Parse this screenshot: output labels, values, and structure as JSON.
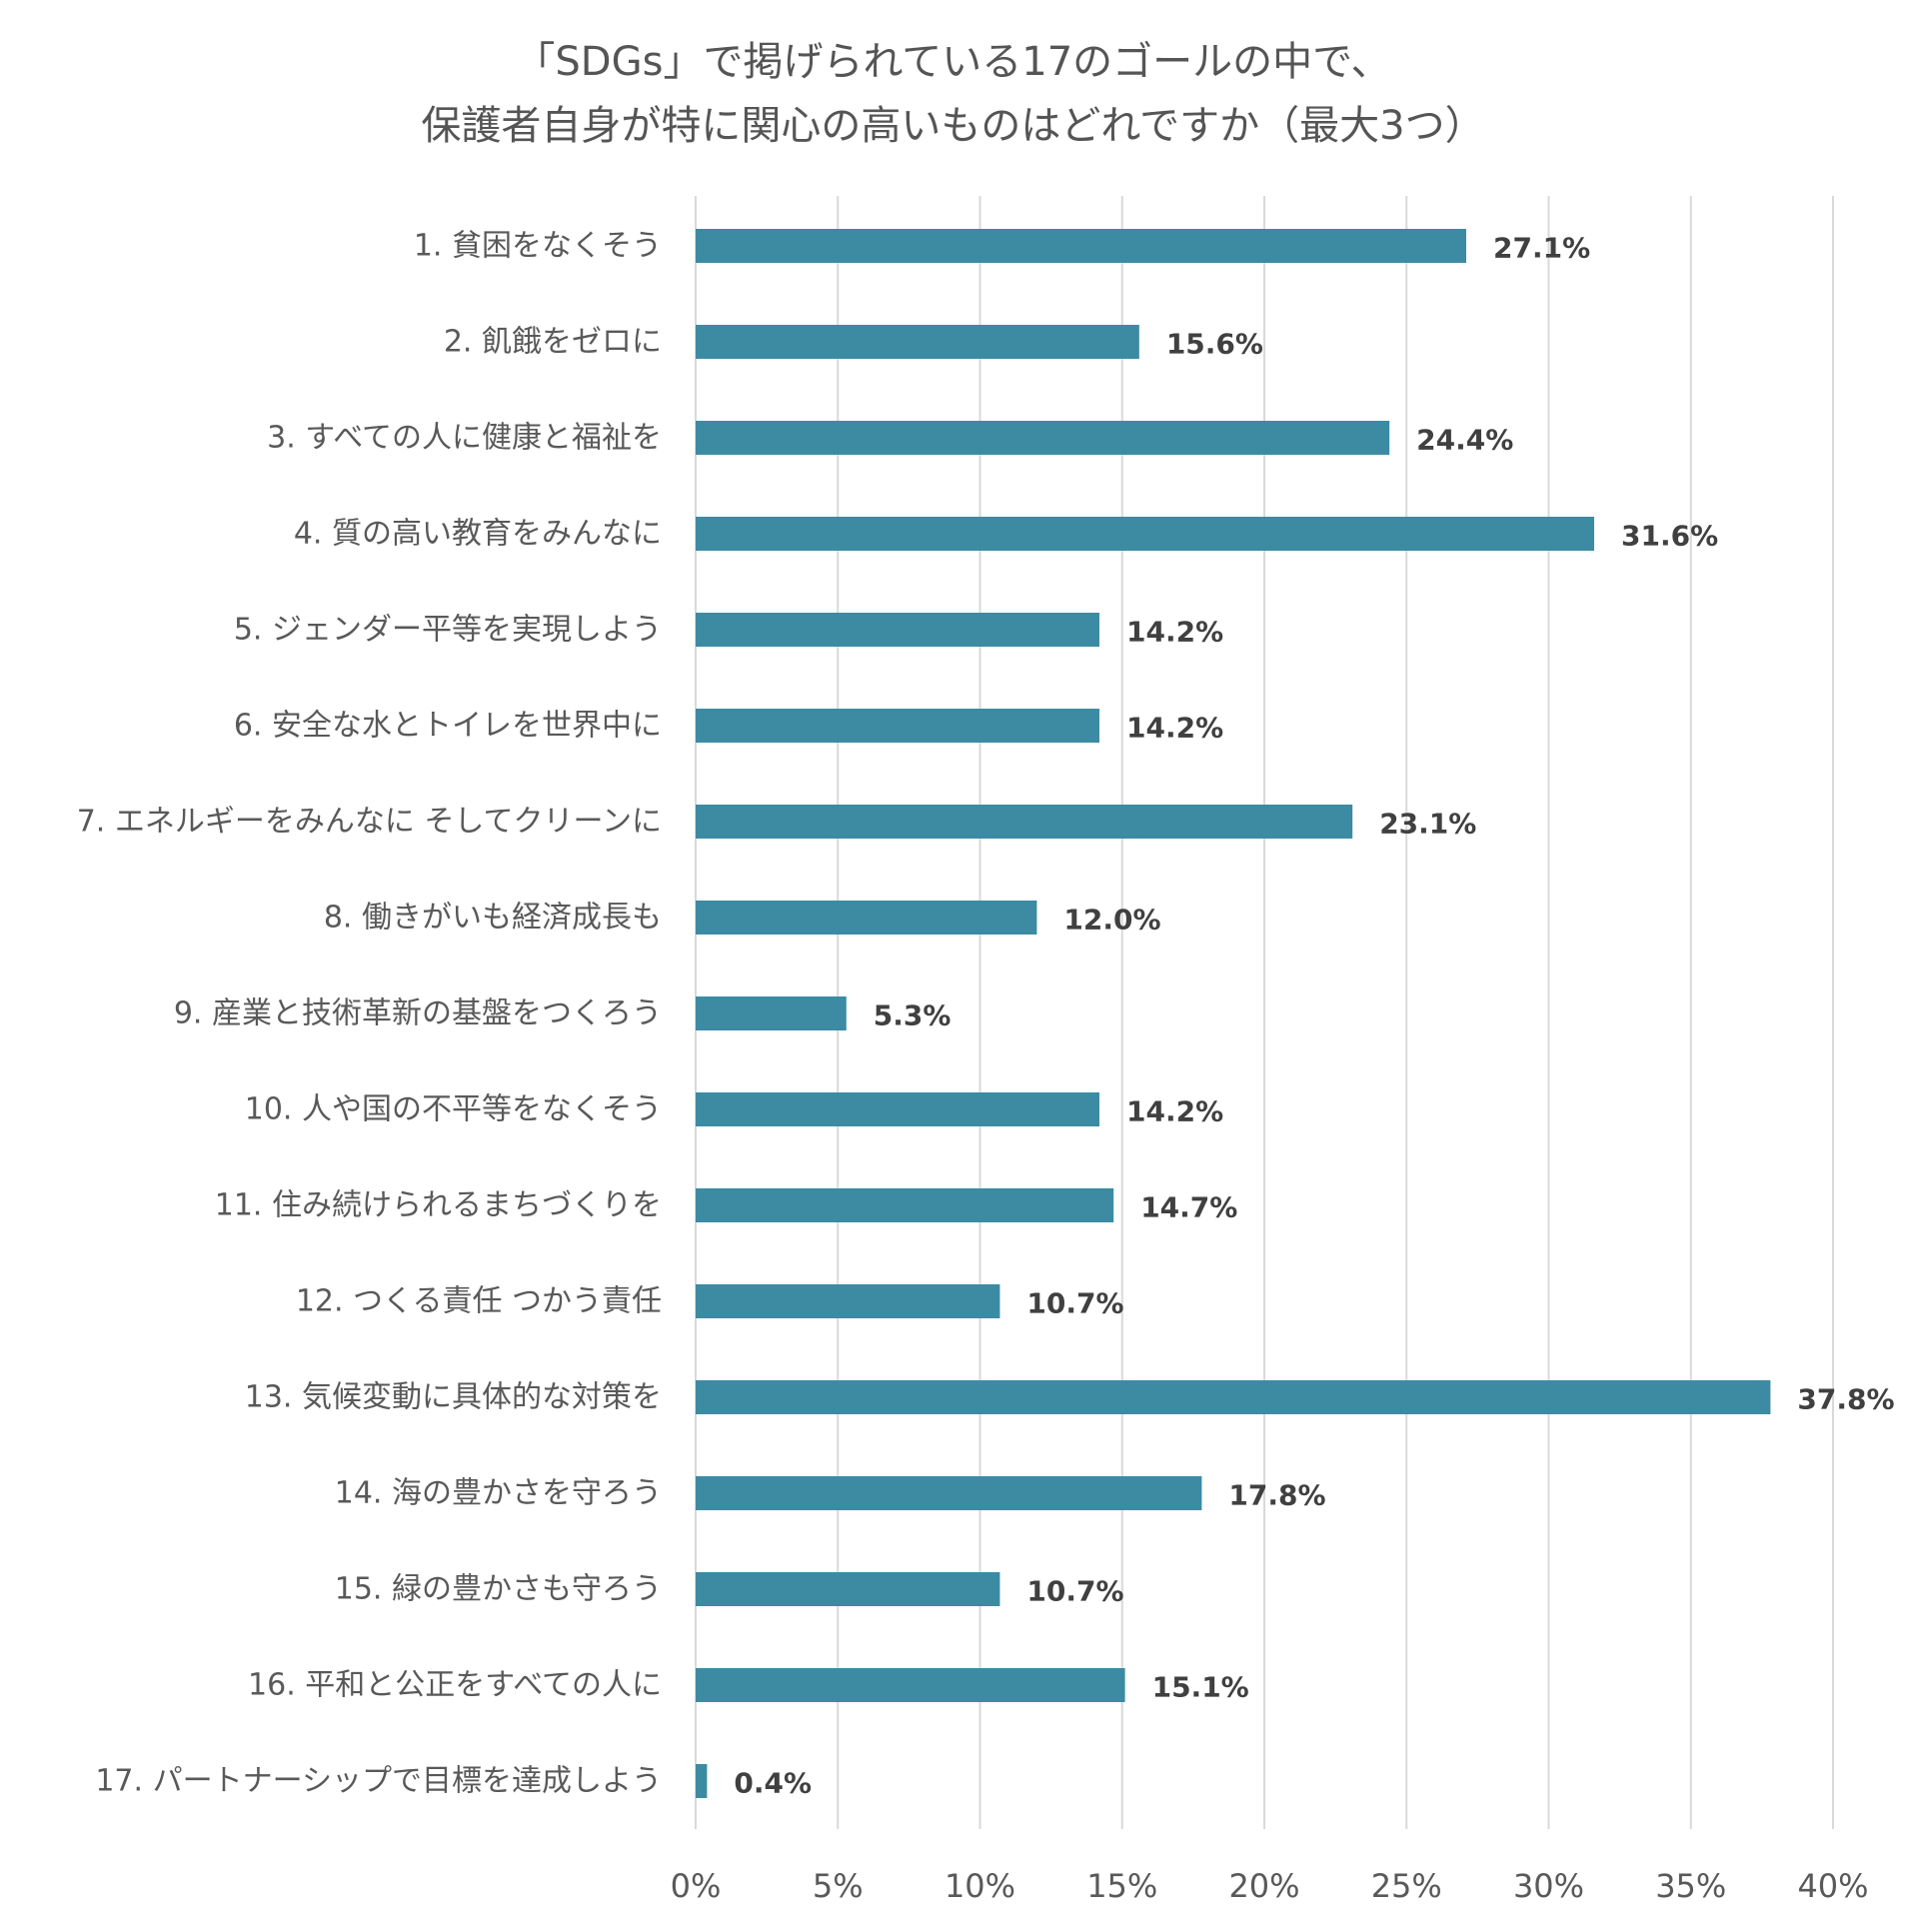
{
  "chart_data": {
    "type": "bar",
    "orientation": "horizontal",
    "title": [
      "「SDGs」で掲げられている17のゴールの中で、",
      "保護者自身が特に関心の高いものはどれですか（最大3つ）"
    ],
    "xlabel": "",
    "ylabel": "",
    "xlim": [
      0,
      40
    ],
    "x_ticks": [
      0,
      5,
      10,
      15,
      20,
      25,
      30,
      35,
      40
    ],
    "x_tick_labels": [
      "0%",
      "5%",
      "10%",
      "15%",
      "20%",
      "25%",
      "30%",
      "35%",
      "40%"
    ],
    "grid": true,
    "legend": "none",
    "bar_color": "#3c8ba3",
    "gridline_color": "#d9d9d9",
    "categories": [
      "1. 貧困をなくそう",
      "2. 飢餓をゼロに",
      "3. すべての人に健康と福祉を",
      "4. 質の高い教育をみんなに",
      "5. ジェンダー平等を実現しよう",
      "6. 安全な水とトイレを世界中に",
      "7. エネルギーをみんなに そしてクリーンに",
      "8. 働きがいも経済成長も",
      "9. 産業と技術革新の基盤をつくろう",
      "10. 人や国の不平等をなくそう",
      "11. 住み続けられるまちづくりを",
      "12. つくる責任 つかう責任",
      "13. 気候変動に具体的な対策を",
      "14. 海の豊かさを守ろう",
      "15. 緑の豊かさも守ろう",
      "16. 平和と公正をすべての人に",
      "17. パートナーシップで目標を達成しよう"
    ],
    "values": [
      27.1,
      15.6,
      24.4,
      31.6,
      14.2,
      14.2,
      23.1,
      12.0,
      5.3,
      14.2,
      14.7,
      10.7,
      37.8,
      17.8,
      10.7,
      15.1,
      0.4
    ],
    "value_labels": [
      "27.1%",
      "15.6%",
      "24.4%",
      "31.6%",
      "14.2%",
      "14.2%",
      "23.1%",
      "12.0%",
      "5.3%",
      "14.2%",
      "14.7%",
      "10.7%",
      "37.8%",
      "17.8%",
      "10.7%",
      "15.1%",
      "0.4%"
    ]
  }
}
